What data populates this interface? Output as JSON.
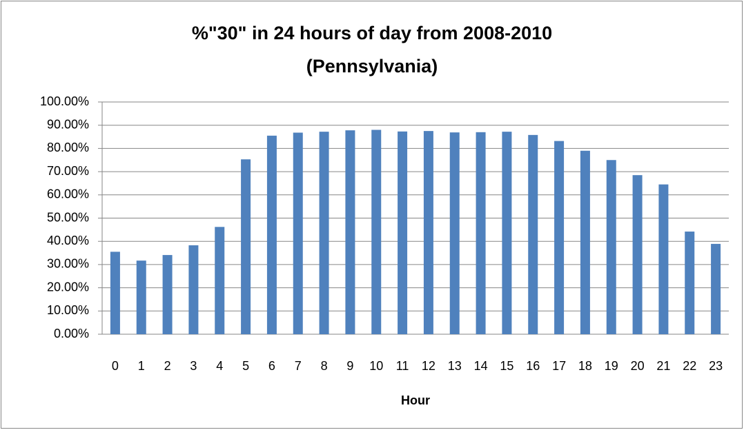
{
  "chart_data": {
    "type": "bar",
    "title": "%\"30\" in 24 hours of day from 2008-2010\n(Pennsylvania)",
    "x_label": "Hour",
    "categories": [
      "0",
      "1",
      "2",
      "3",
      "4",
      "5",
      "6",
      "7",
      "8",
      "9",
      "10",
      "11",
      "12",
      "13",
      "14",
      "15",
      "16",
      "17",
      "18",
      "19",
      "20",
      "21",
      "22",
      "23"
    ],
    "values": [
      35.5,
      31.7,
      34.1,
      38.3,
      46.2,
      75.3,
      85.5,
      86.8,
      87.2,
      87.8,
      88.0,
      87.3,
      87.5,
      86.9,
      87.0,
      87.2,
      85.8,
      83.2,
      79.0,
      75.0,
      68.5,
      64.5,
      44.2,
      38.9
    ],
    "color": "#4f81bd",
    "ylim": [
      0,
      100
    ],
    "yticks": [
      {
        "value": 0,
        "label": "0.00%"
      },
      {
        "value": 10,
        "label": "10.00%"
      },
      {
        "value": 20,
        "label": "20.00%"
      },
      {
        "value": 30,
        "label": "30.00%"
      },
      {
        "value": 40,
        "label": "40.00%"
      },
      {
        "value": 50,
        "label": "50.00%"
      },
      {
        "value": 60,
        "label": "60.00%"
      },
      {
        "value": 70,
        "label": "70.00%"
      },
      {
        "value": 80,
        "label": "80.00%"
      },
      {
        "value": 90,
        "label": "90.00%"
      },
      {
        "value": 100,
        "label": "100.00%"
      }
    ],
    "grid": true
  }
}
